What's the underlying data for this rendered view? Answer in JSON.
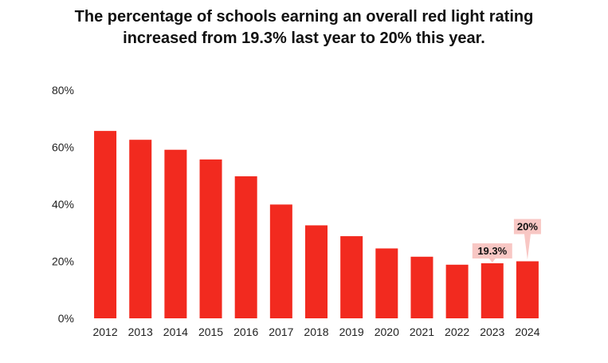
{
  "chart_data": {
    "type": "bar",
    "title_lines": [
      "The percentage of schools earning an overall red light rating",
      "increased from 19.3% last year to 20% this year."
    ],
    "categories": [
      "2012",
      "2013",
      "2014",
      "2015",
      "2016",
      "2017",
      "2018",
      "2019",
      "2020",
      "2021",
      "2022",
      "2023",
      "2024"
    ],
    "values": [
      65.7,
      62.6,
      59.1,
      55.7,
      49.8,
      39.9,
      32.6,
      28.8,
      24.5,
      21.6,
      18.8,
      19.3,
      20.0
    ],
    "ylim": [
      0,
      80
    ],
    "yticks": [
      0,
      20,
      40,
      60,
      80
    ],
    "ytick_labels": [
      "0%",
      "20%",
      "40%",
      "60%",
      "80%"
    ],
    "xlabel": "",
    "ylabel": "",
    "grid": false,
    "bar_color": "#f22a1f",
    "callout_color": "#f8c7c4",
    "annotations": [
      {
        "category": "2023",
        "text": "19.3%"
      },
      {
        "category": "2024",
        "text": "20%"
      }
    ]
  }
}
